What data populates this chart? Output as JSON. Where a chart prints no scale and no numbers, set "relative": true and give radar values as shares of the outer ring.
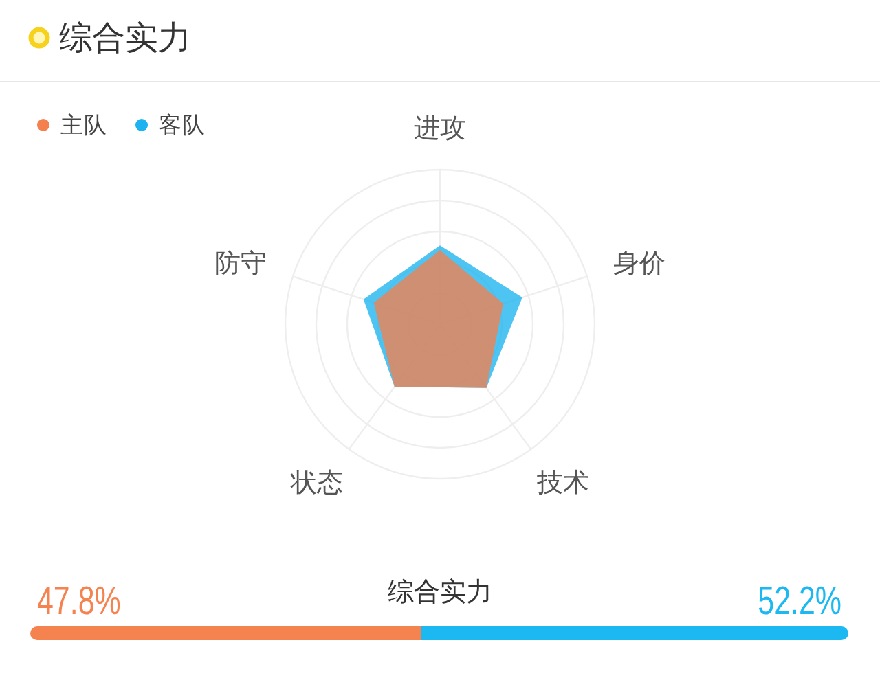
{
  "chart_data": [
    {
      "type": "radar",
      "title": "综合实力",
      "categories": [
        "进攻",
        "身价",
        "技术",
        "状态",
        "防守"
      ],
      "relative": true,
      "grid": true,
      "legend": "top left",
      "series": [
        {
          "name": "主队",
          "color": "#f4804e",
          "values": [
            0.48,
            0.43,
            0.51,
            0.5,
            0.45
          ]
        },
        {
          "name": "客队",
          "color": "#1cb3f0",
          "values": [
            0.51,
            0.56,
            0.51,
            0.5,
            0.52
          ]
        }
      ]
    },
    {
      "type": "bar",
      "title": "综合实力",
      "orientation": "horizontal",
      "stacked": true,
      "categories": [
        null
      ],
      "series": [
        {
          "color": "#f5834f",
          "values": [
            47.8
          ],
          "value_labels": [
            "47.8%"
          ]
        },
        {
          "color": "#1cb8f2",
          "values": [
            52.2
          ],
          "value_labels": [
            "52.2%"
          ]
        }
      ]
    }
  ]
}
